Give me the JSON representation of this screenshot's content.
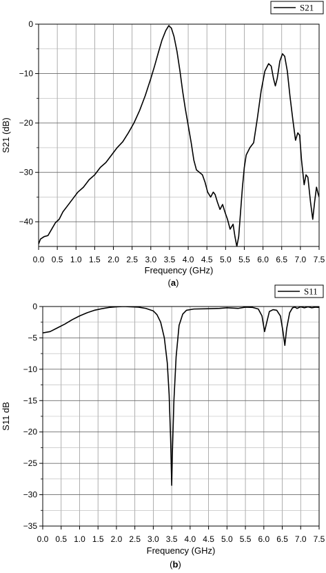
{
  "chart_data": [
    {
      "type": "line",
      "panel": "(a)",
      "panel_letter": "a",
      "xlabel": "Frequency (GHz)",
      "ylabel": "S21 (dB)",
      "xlim": [
        0,
        7.5
      ],
      "ylim": [
        -45,
        0
      ],
      "x_ticks": [
        "0.0",
        "0.5",
        "1.0",
        "1.5",
        "2.0",
        "2.5",
        "3.0",
        "3.5",
        "4.0",
        "4.5",
        "5.0",
        "5.5",
        "6.0",
        "6.5",
        "7.0",
        "7.5"
      ],
      "x_tick_values": [
        0,
        0.5,
        1.0,
        1.5,
        2.0,
        2.5,
        3.0,
        3.5,
        4.0,
        4.5,
        5.0,
        5.5,
        6.0,
        6.5,
        7.0,
        7.5
      ],
      "y_ticks": [
        "0",
        "−10",
        "−20",
        "−30",
        "−40"
      ],
      "y_tick_values": [
        0,
        -10,
        -20,
        -30,
        -40
      ],
      "grid": true,
      "legend_position": "top-right",
      "series": [
        {
          "name": "S21",
          "color": "#000000",
          "points": [
            [
              0.0,
              -44.5
            ],
            [
              0.05,
              -43.5
            ],
            [
              0.15,
              -43.0
            ],
            [
              0.25,
              -42.8
            ],
            [
              0.35,
              -41.5
            ],
            [
              0.45,
              -40.2
            ],
            [
              0.55,
              -39.5
            ],
            [
              0.65,
              -38.0
            ],
            [
              0.8,
              -36.5
            ],
            [
              0.95,
              -35.0
            ],
            [
              1.05,
              -34.0
            ],
            [
              1.2,
              -33.0
            ],
            [
              1.35,
              -31.5
            ],
            [
              1.5,
              -30.5
            ],
            [
              1.65,
              -29.0
            ],
            [
              1.8,
              -28.0
            ],
            [
              1.95,
              -26.5
            ],
            [
              2.1,
              -25.0
            ],
            [
              2.25,
              -23.8
            ],
            [
              2.4,
              -22.0
            ],
            [
              2.55,
              -20.0
            ],
            [
              2.7,
              -17.5
            ],
            [
              2.85,
              -14.5
            ],
            [
              3.0,
              -11.0
            ],
            [
              3.1,
              -8.5
            ],
            [
              3.2,
              -5.8
            ],
            [
              3.3,
              -3.2
            ],
            [
              3.4,
              -1.3
            ],
            [
              3.48,
              -0.3
            ],
            [
              3.55,
              -0.8
            ],
            [
              3.62,
              -2.5
            ],
            [
              3.7,
              -5.5
            ],
            [
              3.78,
              -9.5
            ],
            [
              3.85,
              -13.5
            ],
            [
              3.92,
              -17.0
            ],
            [
              4.0,
              -20.5
            ],
            [
              4.08,
              -24.0
            ],
            [
              4.15,
              -27.5
            ],
            [
              4.22,
              -29.5
            ],
            [
              4.3,
              -30.0
            ],
            [
              4.38,
              -30.5
            ],
            [
              4.45,
              -32.0
            ],
            [
              4.52,
              -34.0
            ],
            [
              4.6,
              -35.0
            ],
            [
              4.67,
              -34.0
            ],
            [
              4.72,
              -34.5
            ],
            [
              4.78,
              -36.0
            ],
            [
              4.85,
              -37.5
            ],
            [
              4.92,
              -36.5
            ],
            [
              4.98,
              -38.0
            ],
            [
              5.05,
              -39.5
            ],
            [
              5.12,
              -41.5
            ],
            [
              5.2,
              -40.5
            ],
            [
              5.25,
              -43.0
            ],
            [
              5.3,
              -45.0
            ],
            [
              5.35,
              -43.0
            ],
            [
              5.4,
              -38.0
            ],
            [
              5.45,
              -33.0
            ],
            [
              5.5,
              -29.0
            ],
            [
              5.55,
              -26.5
            ],
            [
              5.65,
              -25.0
            ],
            [
              5.75,
              -24.0
            ],
            [
              5.85,
              -19.0
            ],
            [
              5.95,
              -13.5
            ],
            [
              6.05,
              -9.5
            ],
            [
              6.15,
              -8.0
            ],
            [
              6.22,
              -8.5
            ],
            [
              6.28,
              -11.0
            ],
            [
              6.33,
              -12.5
            ],
            [
              6.38,
              -11.0
            ],
            [
              6.45,
              -7.5
            ],
            [
              6.52,
              -6.0
            ],
            [
              6.58,
              -6.5
            ],
            [
              6.65,
              -9.5
            ],
            [
              6.72,
              -14.5
            ],
            [
              6.8,
              -19.5
            ],
            [
              6.87,
              -23.5
            ],
            [
              6.93,
              -22.0
            ],
            [
              6.98,
              -22.5
            ],
            [
              7.03,
              -27.5
            ],
            [
              7.1,
              -32.5
            ],
            [
              7.15,
              -30.5
            ],
            [
              7.2,
              -31.0
            ],
            [
              7.27,
              -36.0
            ],
            [
              7.33,
              -39.5
            ],
            [
              7.38,
              -36.0
            ],
            [
              7.43,
              -33.0
            ],
            [
              7.48,
              -34.5
            ],
            [
              7.5,
              -35.0
            ]
          ]
        }
      ]
    },
    {
      "type": "line",
      "panel": "(b)",
      "panel_letter": "b",
      "xlabel": "Frequency (GHz)",
      "ylabel": "S11 dB",
      "xlim": [
        0,
        7.5
      ],
      "ylim": [
        -35,
        0
      ],
      "x_ticks": [
        "0.0",
        "0.5",
        "1.0",
        "1.5",
        "2.0",
        "2.5",
        "3.0",
        "3.5",
        "4.0",
        "4.5",
        "5.0",
        "5.5",
        "6.0",
        "6.5",
        "7.0",
        "7.5"
      ],
      "x_tick_values": [
        0,
        0.5,
        1.0,
        1.5,
        2.0,
        2.5,
        3.0,
        3.5,
        4.0,
        4.5,
        5.0,
        5.5,
        6.0,
        6.5,
        7.0,
        7.5
      ],
      "y_ticks": [
        "0",
        "−5",
        "−10",
        "−15",
        "−20",
        "−25",
        "−30",
        "−35"
      ],
      "y_tick_values": [
        0,
        -5,
        -10,
        -15,
        -20,
        -25,
        -30,
        -35
      ],
      "grid": true,
      "legend_position": "top-right",
      "series": [
        {
          "name": "S11",
          "color": "#000000",
          "points": [
            [
              0.0,
              -4.2
            ],
            [
              0.2,
              -4.0
            ],
            [
              0.4,
              -3.4
            ],
            [
              0.6,
              -2.8
            ],
            [
              0.8,
              -2.1
            ],
            [
              1.0,
              -1.5
            ],
            [
              1.2,
              -1.0
            ],
            [
              1.4,
              -0.6
            ],
            [
              1.6,
              -0.35
            ],
            [
              1.8,
              -0.15
            ],
            [
              2.0,
              -0.05
            ],
            [
              2.2,
              0.0
            ],
            [
              2.4,
              -0.05
            ],
            [
              2.6,
              -0.1
            ],
            [
              2.8,
              -0.3
            ],
            [
              3.0,
              -0.7
            ],
            [
              3.1,
              -1.3
            ],
            [
              3.2,
              -2.5
            ],
            [
              3.3,
              -5.0
            ],
            [
              3.38,
              -9.0
            ],
            [
              3.43,
              -14.0
            ],
            [
              3.47,
              -21.0
            ],
            [
              3.5,
              -28.5
            ],
            [
              3.52,
              -23.0
            ],
            [
              3.56,
              -15.0
            ],
            [
              3.62,
              -8.0
            ],
            [
              3.7,
              -3.0
            ],
            [
              3.8,
              -1.2
            ],
            [
              3.9,
              -0.6
            ],
            [
              4.1,
              -0.4
            ],
            [
              4.5,
              -0.35
            ],
            [
              4.8,
              -0.3
            ],
            [
              5.0,
              -0.2
            ],
            [
              5.3,
              -0.3
            ],
            [
              5.5,
              -0.1
            ],
            [
              5.7,
              -0.15
            ],
            [
              5.85,
              -0.4
            ],
            [
              5.95,
              -1.5
            ],
            [
              6.02,
              -4.0
            ],
            [
              6.08,
              -2.5
            ],
            [
              6.15,
              -0.8
            ],
            [
              6.25,
              -0.5
            ],
            [
              6.35,
              -0.6
            ],
            [
              6.45,
              -1.5
            ],
            [
              6.52,
              -4.0
            ],
            [
              6.57,
              -6.2
            ],
            [
              6.62,
              -3.5
            ],
            [
              6.7,
              -1.0
            ],
            [
              6.78,
              -0.2
            ],
            [
              6.85,
              -0.1
            ],
            [
              6.9,
              -0.3
            ],
            [
              7.0,
              -0.05
            ],
            [
              7.1,
              -0.2
            ],
            [
              7.2,
              -0.05
            ],
            [
              7.3,
              -0.2
            ],
            [
              7.4,
              -0.1
            ],
            [
              7.5,
              -0.15
            ]
          ]
        }
      ]
    }
  ]
}
